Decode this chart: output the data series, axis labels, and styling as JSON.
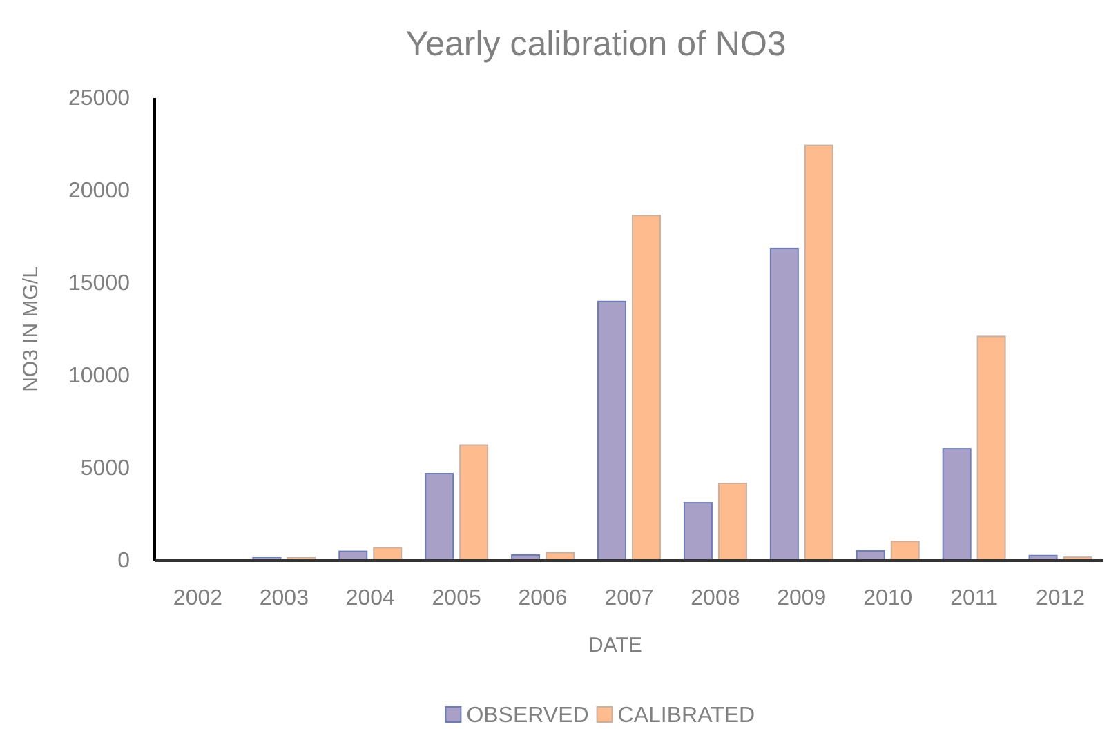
{
  "chart_data": {
    "type": "bar",
    "title": "Yearly calibration of NO3",
    "xlabel": "DATE",
    "ylabel": "NO3 IN MG/L",
    "categories": [
      "2002",
      "2003",
      "2004",
      "2005",
      "2006",
      "2007",
      "2008",
      "2009",
      "2010",
      "2011",
      "2012"
    ],
    "series": [
      {
        "name": "OBSERVED",
        "color": "#a9a0c8",
        "values": [
          0,
          150,
          500,
          4700,
          300,
          14000,
          3130,
          16870,
          520,
          6040,
          270
        ]
      },
      {
        "name": "CALIBRATED",
        "color": "#fdbb8e",
        "values": [
          0,
          150,
          700,
          6250,
          420,
          18650,
          4180,
          22440,
          1040,
          12110,
          180
        ]
      }
    ],
    "ylim": [
      0,
      25000
    ],
    "yticks": [
      0,
      5000,
      10000,
      15000,
      20000,
      25000
    ],
    "grid": false,
    "legend": "bottom"
  }
}
